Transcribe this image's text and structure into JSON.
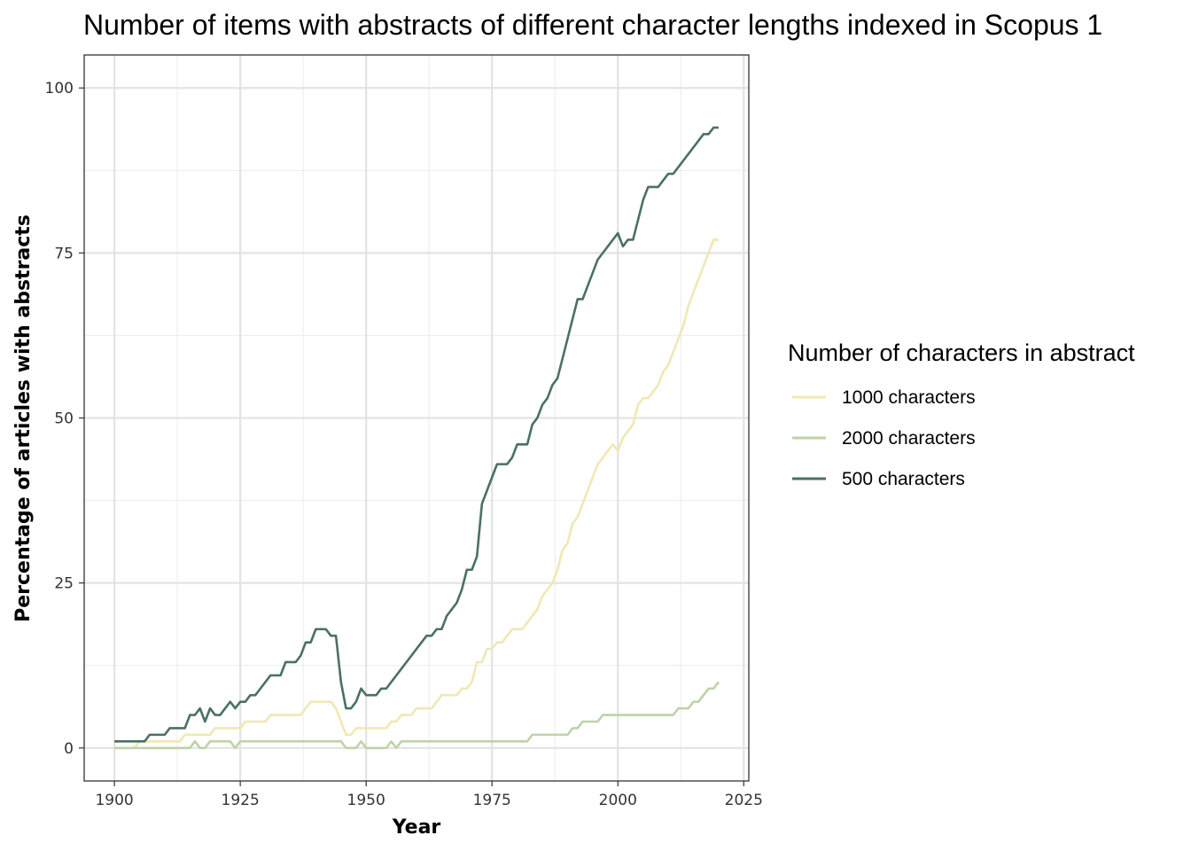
{
  "chart_data": {
    "type": "line",
    "title": "Number of items with abstracts of different character lengths indexed in Scopus 1",
    "xlabel": "Year",
    "ylabel": "Percentage of articles with abstracts",
    "xlim": [
      1894,
      2026
    ],
    "ylim": [
      -5,
      105
    ],
    "x_ticks": [
      1900,
      1925,
      1950,
      1975,
      2000,
      2025
    ],
    "y_ticks": [
      0,
      25,
      50,
      75,
      100
    ],
    "x_tick_labels": [
      "1900",
      "1925",
      "1950",
      "1975",
      "2000",
      "2025"
    ],
    "y_tick_labels": [
      "0",
      "25",
      "50",
      "75",
      "100"
    ],
    "grid": true,
    "legend_position": "right",
    "legend_title": "Number of characters in abstract",
    "series": [
      {
        "name": "1000 characters",
        "color": "#f0e8b4",
        "x": [
          1900,
          1904,
          1905,
          1906,
          1913,
          1914,
          1919,
          1920,
          1925,
          1926,
          1930,
          1931,
          1937,
          1938,
          1939,
          1943,
          1944,
          1945,
          1946,
          1947,
          1948,
          1953,
          1954,
          1955,
          1956,
          1957,
          1958,
          1959,
          1960,
          1961,
          1962,
          1963,
          1964,
          1965,
          1966,
          1967,
          1968,
          1969,
          1970,
          1971,
          1972,
          1973,
          1974,
          1975,
          1976,
          1977,
          1978,
          1979,
          1980,
          1981,
          1982,
          1983,
          1984,
          1985,
          1986,
          1987,
          1988,
          1989,
          1990,
          1991,
          1992,
          1993,
          1994,
          1995,
          1996,
          1997,
          1998,
          1999,
          2000,
          2001,
          2002,
          2003,
          2004,
          2005,
          2006,
          2007,
          2008,
          2009,
          2010,
          2011,
          2012,
          2013,
          2014,
          2015,
          2016,
          2017,
          2018,
          2019,
          2020
        ],
        "values": [
          0,
          0,
          1,
          1,
          1,
          2,
          2,
          3,
          3,
          4,
          4,
          5,
          5,
          6,
          7,
          7,
          6,
          4,
          2,
          2,
          3,
          3,
          3,
          4,
          4,
          5,
          5,
          5,
          6,
          6,
          6,
          6,
          7,
          8,
          8,
          8,
          8,
          9,
          9,
          10,
          13,
          13,
          15,
          15,
          16,
          16,
          17,
          18,
          18,
          18,
          19,
          20,
          21,
          23,
          24,
          25,
          27,
          30,
          31,
          34,
          35,
          37,
          39,
          41,
          43,
          44,
          45,
          46,
          45,
          47,
          48,
          49,
          52,
          53,
          53,
          54,
          55,
          57,
          58,
          60,
          62,
          64,
          67,
          69,
          71,
          73,
          75,
          77,
          77
        ]
      },
      {
        "name": "2000 characters",
        "color": "#bed3a7",
        "x": [
          1900,
          1914,
          1915,
          1916,
          1917,
          1918,
          1919,
          1923,
          1924,
          1925,
          1945,
          1946,
          1947,
          1948,
          1949,
          1950,
          1951,
          1952,
          1953,
          1954,
          1955,
          1956,
          1957,
          1958,
          1982,
          1983,
          1984,
          1990,
          1991,
          1992,
          1993,
          1994,
          1995,
          1996,
          1997,
          1998,
          2010,
          2011,
          2012,
          2013,
          2014,
          2015,
          2016,
          2017,
          2018,
          2019,
          2020
        ],
        "values": [
          0,
          0,
          0,
          1,
          0,
          0,
          1,
          1,
          0,
          1,
          1,
          0,
          0,
          0,
          1,
          0,
          0,
          0,
          0,
          0,
          1,
          0,
          1,
          1,
          1,
          2,
          2,
          2,
          3,
          3,
          4,
          4,
          4,
          4,
          5,
          5,
          5,
          5,
          6,
          6,
          6,
          7,
          7,
          8,
          9,
          9,
          10
        ]
      },
      {
        "name": "500 characters",
        "color": "#4b7065",
        "x": [
          1900,
          1905,
          1906,
          1907,
          1908,
          1909,
          1910,
          1911,
          1912,
          1913,
          1914,
          1915,
          1916,
          1917,
          1918,
          1919,
          1920,
          1921,
          1922,
          1923,
          1924,
          1925,
          1926,
          1927,
          1928,
          1929,
          1930,
          1931,
          1932,
          1933,
          1934,
          1935,
          1936,
          1937,
          1938,
          1939,
          1940,
          1941,
          1942,
          1943,
          1944,
          1945,
          1946,
          1947,
          1948,
          1949,
          1950,
          1951,
          1952,
          1953,
          1954,
          1955,
          1956,
          1957,
          1958,
          1959,
          1960,
          1961,
          1962,
          1963,
          1964,
          1965,
          1966,
          1967,
          1968,
          1969,
          1970,
          1971,
          1972,
          1973,
          1974,
          1975,
          1976,
          1977,
          1978,
          1979,
          1980,
          1981,
          1982,
          1983,
          1984,
          1985,
          1986,
          1987,
          1988,
          1989,
          1990,
          1991,
          1992,
          1993,
          1994,
          1995,
          1996,
          1997,
          1998,
          1999,
          2000,
          2001,
          2002,
          2003,
          2004,
          2005,
          2006,
          2007,
          2008,
          2009,
          2010,
          2011,
          2012,
          2013,
          2014,
          2015,
          2016,
          2017,
          2018,
          2019,
          2020
        ],
        "values": [
          1,
          1,
          1,
          2,
          2,
          2,
          2,
          3,
          3,
          3,
          3,
          5,
          5,
          6,
          4,
          6,
          5,
          5,
          6,
          7,
          6,
          7,
          7,
          8,
          8,
          9,
          10,
          11,
          11,
          11,
          13,
          13,
          13,
          14,
          16,
          16,
          18,
          18,
          18,
          17,
          17,
          10,
          6,
          6,
          7,
          9,
          8,
          8,
          8,
          9,
          9,
          10,
          11,
          12,
          13,
          14,
          15,
          16,
          17,
          17,
          18,
          18,
          20,
          21,
          22,
          24,
          27,
          27,
          29,
          37,
          39,
          41,
          43,
          43,
          43,
          44,
          46,
          46,
          46,
          49,
          50,
          52,
          53,
          55,
          56,
          59,
          62,
          65,
          68,
          68,
          70,
          72,
          74,
          75,
          76,
          77,
          78,
          76,
          77,
          77,
          80,
          83,
          85,
          85,
          85,
          86,
          87,
          87,
          88,
          89,
          90,
          91,
          92,
          93,
          93,
          94,
          94
        ]
      }
    ]
  }
}
